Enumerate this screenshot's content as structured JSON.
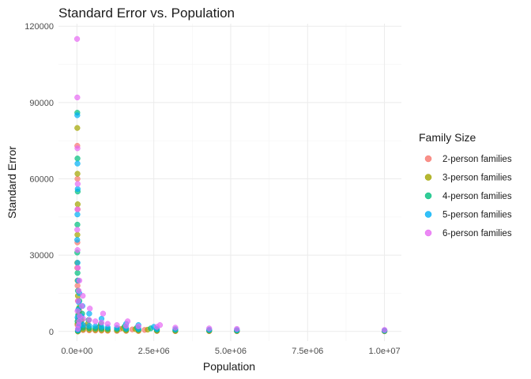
{
  "chart_data": {
    "type": "scatter",
    "title": "Standard Error vs. Population",
    "xlabel": "Population",
    "ylabel": "Standard Error",
    "xlim": [
      -600000,
      10550000
    ],
    "ylim": [
      -3800,
      121000
    ],
    "x_ticks": [
      0,
      2500000,
      5000000,
      7500000,
      10000000
    ],
    "x_tick_labels": [
      "0.0e+00",
      "2.5e+06",
      "5.0e+06",
      "7.5e+06",
      "1.0e+07"
    ],
    "y_ticks": [
      0,
      30000,
      60000,
      90000,
      120000
    ],
    "y_tick_labels": [
      "0",
      "30000",
      "60000",
      "90000",
      "120000"
    ],
    "grid": true,
    "legend": {
      "title": "Family Size",
      "position": "right"
    },
    "series": [
      {
        "name": "2-person families",
        "color": "#F8766D",
        "points": [
          [
            30000,
            0
          ],
          [
            50000,
            300
          ],
          [
            70000,
            700
          ],
          [
            90000,
            1200
          ],
          [
            20000,
            2500
          ],
          [
            40000,
            4200
          ],
          [
            60000,
            6000
          ],
          [
            80000,
            8000
          ],
          [
            30000,
            12000
          ],
          [
            20000,
            18000
          ],
          [
            10000,
            25000
          ],
          [
            15000,
            35000
          ],
          [
            25000,
            48000
          ],
          [
            18000,
            60000
          ],
          [
            12000,
            73000
          ],
          [
            200000,
            500
          ],
          [
            400000,
            400
          ],
          [
            600000,
            350
          ],
          [
            800000,
            300
          ],
          [
            1000000,
            250
          ],
          [
            1300000,
            200
          ],
          [
            1600000,
            200
          ],
          [
            2000000,
            150
          ],
          [
            2600000,
            150
          ],
          [
            3200000,
            100
          ],
          [
            4300000,
            100
          ],
          [
            5200000,
            80
          ],
          [
            10000000,
            50
          ],
          [
            120000,
            1500
          ],
          [
            150000,
            3000
          ],
          [
            300000,
            2000
          ],
          [
            700000,
            1500
          ],
          [
            1400000,
            1000
          ],
          [
            1800000,
            800
          ],
          [
            2200000,
            600
          ]
        ]
      },
      {
        "name": "3-person families",
        "color": "#A3A500",
        "points": [
          [
            30000,
            0
          ],
          [
            50000,
            500
          ],
          [
            70000,
            1000
          ],
          [
            90000,
            1700
          ],
          [
            20000,
            3000
          ],
          [
            40000,
            5000
          ],
          [
            60000,
            7000
          ],
          [
            80000,
            9500
          ],
          [
            30000,
            14000
          ],
          [
            20000,
            20000
          ],
          [
            10000,
            27000
          ],
          [
            15000,
            38000
          ],
          [
            25000,
            50000
          ],
          [
            18000,
            62000
          ],
          [
            12000,
            80000
          ],
          [
            200000,
            800
          ],
          [
            400000,
            700
          ],
          [
            600000,
            600
          ],
          [
            800000,
            500
          ],
          [
            1000000,
            450
          ],
          [
            1300000,
            400
          ],
          [
            1600000,
            350
          ],
          [
            2000000,
            300
          ],
          [
            2600000,
            250
          ],
          [
            3200000,
            200
          ],
          [
            4300000,
            180
          ],
          [
            5200000,
            150
          ],
          [
            10000000,
            100
          ],
          [
            130000,
            2500
          ],
          [
            160000,
            4500
          ],
          [
            350000,
            3000
          ],
          [
            750000,
            2000
          ],
          [
            1500000,
            1200
          ],
          [
            1900000,
            900
          ],
          [
            2300000,
            700
          ]
        ]
      },
      {
        "name": "4-person families",
        "color": "#00BF7D",
        "points": [
          [
            30000,
            200
          ],
          [
            50000,
            800
          ],
          [
            70000,
            1500
          ],
          [
            90000,
            2200
          ],
          [
            20000,
            4000
          ],
          [
            40000,
            6500
          ],
          [
            60000,
            9000
          ],
          [
            80000,
            12000
          ],
          [
            30000,
            16000
          ],
          [
            20000,
            23000
          ],
          [
            10000,
            31000
          ],
          [
            15000,
            42000
          ],
          [
            25000,
            55000
          ],
          [
            18000,
            68000
          ],
          [
            12000,
            86000
          ],
          [
            200000,
            1500
          ],
          [
            400000,
            1300
          ],
          [
            600000,
            1200
          ],
          [
            800000,
            1100
          ],
          [
            1000000,
            1000
          ],
          [
            1300000,
            900
          ],
          [
            1600000,
            800
          ],
          [
            2000000,
            700
          ],
          [
            2600000,
            600
          ],
          [
            3200000,
            500
          ],
          [
            4300000,
            400
          ],
          [
            5200000,
            300
          ],
          [
            10000000,
            200
          ],
          [
            140000,
            4000
          ],
          [
            170000,
            7000
          ],
          [
            380000,
            4500
          ],
          [
            780000,
            3000
          ],
          [
            1550000,
            2000
          ],
          [
            1950000,
            1500
          ],
          [
            2400000,
            1200
          ]
        ]
      },
      {
        "name": "5-person families",
        "color": "#00B0F6",
        "points": [
          [
            30000,
            500
          ],
          [
            50000,
            1200
          ],
          [
            70000,
            2200
          ],
          [
            90000,
            3200
          ],
          [
            20000,
            5500
          ],
          [
            40000,
            8500
          ],
          [
            60000,
            11500
          ],
          [
            80000,
            15000
          ],
          [
            30000,
            20000
          ],
          [
            20000,
            27000
          ],
          [
            10000,
            36000
          ],
          [
            15000,
            46000
          ],
          [
            25000,
            56000
          ],
          [
            18000,
            66000
          ],
          [
            12000,
            85000
          ],
          [
            200000,
            2500
          ],
          [
            400000,
            2200
          ],
          [
            600000,
            2000
          ],
          [
            800000,
            1800
          ],
          [
            1000000,
            1600
          ],
          [
            1300000,
            1400
          ],
          [
            1600000,
            1200
          ],
          [
            2000000,
            1100
          ],
          [
            2600000,
            1000
          ],
          [
            3200000,
            900
          ],
          [
            4300000,
            700
          ],
          [
            5200000,
            600
          ],
          [
            10000000,
            400
          ],
          [
            150000,
            6000
          ],
          [
            180000,
            10000
          ],
          [
            400000,
            7000
          ],
          [
            800000,
            5000
          ],
          [
            1600000,
            3000
          ],
          [
            2000000,
            2500
          ],
          [
            2500000,
            1800
          ]
        ]
      },
      {
        "name": "6-person families",
        "color": "#E76BF3",
        "points": [
          [
            30000,
            1000
          ],
          [
            50000,
            2500
          ],
          [
            70000,
            4000
          ],
          [
            90000,
            6000
          ],
          [
            20000,
            8000
          ],
          [
            40000,
            12000
          ],
          [
            60000,
            16000
          ],
          [
            80000,
            20000
          ],
          [
            30000,
            25000
          ],
          [
            20000,
            32000
          ],
          [
            10000,
            40000
          ],
          [
            15000,
            48000
          ],
          [
            25000,
            58000
          ],
          [
            18000,
            72000
          ],
          [
            12000,
            92000
          ],
          [
            5000,
            115000
          ],
          [
            200000,
            5000
          ],
          [
            400000,
            4500
          ],
          [
            600000,
            4000
          ],
          [
            800000,
            3500
          ],
          [
            1000000,
            3000
          ],
          [
            1300000,
            2500
          ],
          [
            1600000,
            2200
          ],
          [
            2000000,
            2000
          ],
          [
            2600000,
            1800
          ],
          [
            3200000,
            1500
          ],
          [
            4300000,
            1200
          ],
          [
            5200000,
            1000
          ],
          [
            10000000,
            600
          ],
          [
            160000,
            10000
          ],
          [
            190000,
            14000
          ],
          [
            420000,
            9000
          ],
          [
            850000,
            7000
          ],
          [
            1650000,
            4000
          ],
          [
            2700000,
            2500
          ]
        ]
      }
    ]
  }
}
